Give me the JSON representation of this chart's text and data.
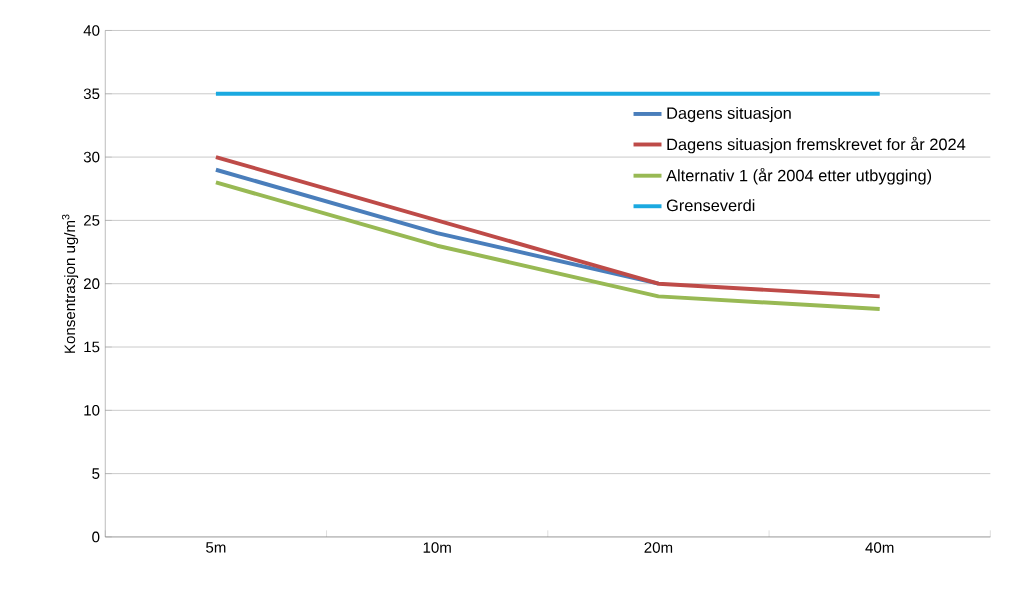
{
  "chart_data": {
    "type": "line",
    "ylabel": "Konsentrasjon ug/m$^{3}$",
    "categories": [
      "5m",
      "10m",
      "20m",
      "40m"
    ],
    "series": [
      {
        "name": "Dagens situasjon",
        "color": "#4a7ebb",
        "values": [
          29,
          24,
          20,
          null
        ]
      },
      {
        "name": "Dagens situasjon fremskrevet for år 2024",
        "color": "#be4b48",
        "values": [
          30,
          25,
          20,
          19
        ]
      },
      {
        "name": "Alternativ 1 (år 2004 etter utbygging)",
        "color": "#98b954",
        "values": [
          28,
          23,
          19,
          18
        ]
      },
      {
        "name": "Grenseverdi",
        "color": "#1ba9e0",
        "values": [
          35,
          35,
          35,
          35
        ]
      }
    ],
    "ylim": [
      0,
      40
    ],
    "yticks": [
      0,
      5,
      10,
      15,
      20,
      25,
      30,
      35,
      40
    ],
    "grid": "y",
    "legend": "top right",
    "marker": "none",
    "line_style": "solid"
  }
}
